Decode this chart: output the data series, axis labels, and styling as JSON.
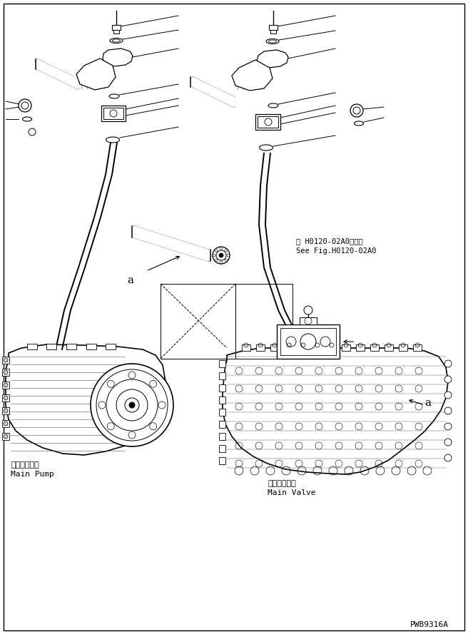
{
  "bg_color": "#ffffff",
  "line_color": "#000000",
  "fig_width": 6.56,
  "fig_height": 8.89,
  "dpi": 100,
  "watermark": "PWB9316A",
  "ref_text_line1": "第 H0120-02A0図参照",
  "ref_text_line2": "See Fig.H0120-02A0",
  "label_main_pump_jp": "メインポンプ",
  "label_main_pump_en": "Main Pump",
  "label_main_valve_jp": "メインバルブ",
  "label_main_valve_en": "Main Valve",
  "label_a": "a"
}
